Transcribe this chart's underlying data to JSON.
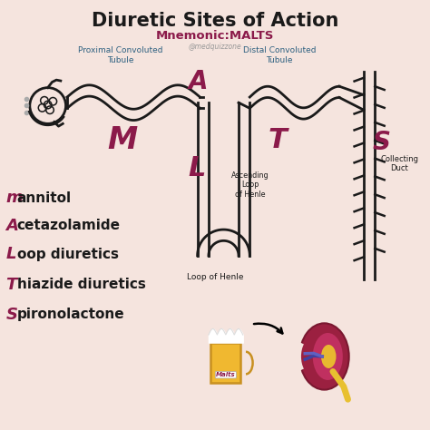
{
  "title": "Diuretic Sites of Action",
  "subtitle": "Mnemonic:MALTS",
  "watermark": "@medquizzone",
  "bg_color": "#f5e4de",
  "title_color": "#1a1a1a",
  "subtitle_color": "#8b1a4a",
  "mnemonic_color": "#8b1a4a",
  "label_color": "#2d6080",
  "body_color": "#1a1a1a",
  "nephron_color": "#1a1a1a",
  "legend_items": [
    {
      "letter": "m",
      "rest": "annitol"
    },
    {
      "letter": "A",
      "rest": "cetazolamide"
    },
    {
      "letter": "L",
      "rest": "oop diuretics"
    },
    {
      "letter": "T",
      "rest": "hiazide diuretics"
    },
    {
      "letter": "S",
      "rest": "pironolactone"
    }
  ],
  "labels": {
    "pct": "Proximal Convoluted\nTubule",
    "dct": "Distal Convoluted\nTubule",
    "ascending": "Ascending\nLoop\nof Henle",
    "loop": "Loop of Henle",
    "collecting": "Collecting\nDuct"
  }
}
